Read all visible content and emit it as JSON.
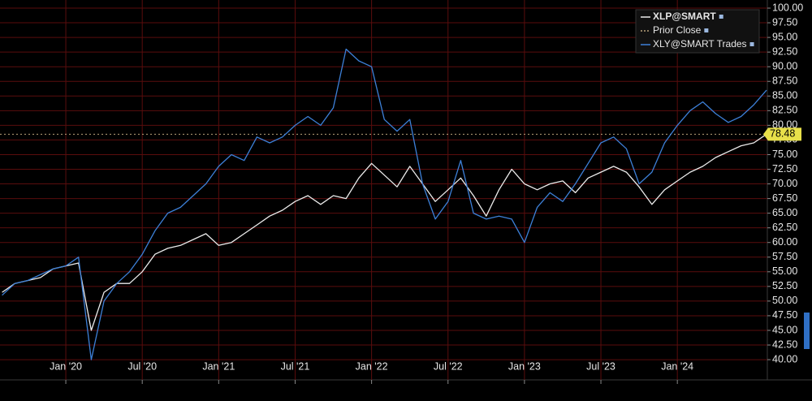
{
  "chart_data": {
    "type": "line",
    "categories": [
      null,
      null,
      null,
      null,
      null,
      "Jan '20",
      null,
      null,
      null,
      null,
      null,
      "Jul '20",
      null,
      null,
      null,
      null,
      null,
      "Jan '21",
      null,
      null,
      null,
      null,
      null,
      "Jul '21",
      null,
      null,
      null,
      null,
      null,
      "Jan '22",
      null,
      null,
      null,
      null,
      null,
      "Jul '22",
      null,
      null,
      null,
      null,
      null,
      "Jan '23",
      null,
      null,
      null,
      null,
      null,
      "Jul '23",
      null,
      null,
      null,
      null,
      null,
      "Jan '24",
      null,
      null,
      null,
      null,
      null,
      null,
      null
    ],
    "series": [
      {
        "name": "XLP@SMART",
        "color": "#ececec",
        "values": [
          51.5,
          53,
          53.5,
          54,
          55.5,
          56,
          56.5,
          45,
          51.5,
          53,
          53,
          55,
          58,
          59,
          59.5,
          60.5,
          61.5,
          59.5,
          60,
          61.5,
          63,
          64.5,
          65.5,
          67,
          68,
          66.5,
          68,
          67.5,
          71,
          73.5,
          71.5,
          69.5,
          73,
          70,
          67,
          69,
          71,
          68,
          64.5,
          69,
          72.5,
          70,
          69,
          70,
          70.5,
          68.5,
          71,
          72,
          73,
          72,
          69.5,
          66.5,
          69,
          70.5,
          72,
          73,
          74.5,
          75.5,
          76.5,
          77,
          78.48
        ]
      },
      {
        "name": "XLY@SMART Trades",
        "color": "#3d80d8",
        "values": [
          51,
          53,
          53.5,
          54.5,
          55.5,
          56,
          57.5,
          40,
          50,
          53,
          55,
          58,
          62,
          65,
          66,
          68,
          70,
          73,
          75,
          74,
          78,
          77,
          78,
          80,
          81.5,
          80,
          83,
          93,
          91,
          90,
          81,
          79,
          81,
          70,
          64,
          67,
          74,
          65,
          64,
          64.5,
          64,
          60,
          66,
          68.5,
          67,
          70,
          73.5,
          77,
          78,
          76,
          70,
          72,
          77,
          80,
          82.5,
          84,
          82,
          80.5,
          81.5,
          83.5,
          86
        ]
      }
    ],
    "prior_close": {
      "name": "Prior Close",
      "value": 78.48,
      "color": "#b9a27a"
    },
    "ylim": [
      38.5,
      101
    ],
    "yticks": [
      {
        "value": 40,
        "label": "40.00"
      },
      {
        "value": 42.5,
        "label": "42.50"
      },
      {
        "value": 45,
        "label": "45.00"
      },
      {
        "value": 47.5,
        "label": "47.50"
      },
      {
        "value": 50,
        "label": "50.00"
      },
      {
        "value": 52.5,
        "label": "52.50"
      },
      {
        "value": 55,
        "label": "55.00"
      },
      {
        "value": 57.5,
        "label": "57.50"
      },
      {
        "value": 60,
        "label": "60.00"
      },
      {
        "value": 62.5,
        "label": "62.50"
      },
      {
        "value": 65,
        "label": "65.00"
      },
      {
        "value": 67.5,
        "label": "67.50"
      },
      {
        "value": 70,
        "label": "70.00"
      },
      {
        "value": 72.5,
        "label": "72.50"
      },
      {
        "value": 75,
        "label": "75.00"
      },
      {
        "value": 77.5,
        "label": "77.50"
      },
      {
        "value": 80,
        "label": "80.00"
      },
      {
        "value": 82.5,
        "label": "82.50"
      },
      {
        "value": 85,
        "label": "85.00"
      },
      {
        "value": 87.5,
        "label": "87.50"
      },
      {
        "value": 90,
        "label": "90.00"
      },
      {
        "value": 92.5,
        "label": "92.50"
      },
      {
        "value": 95,
        "label": "95.00"
      },
      {
        "value": 97.5,
        "label": "97.50"
      },
      {
        "value": 100,
        "label": "100.00"
      }
    ],
    "grid": true,
    "grid_color": "#5a0d0d",
    "legend": "top-right"
  }
}
